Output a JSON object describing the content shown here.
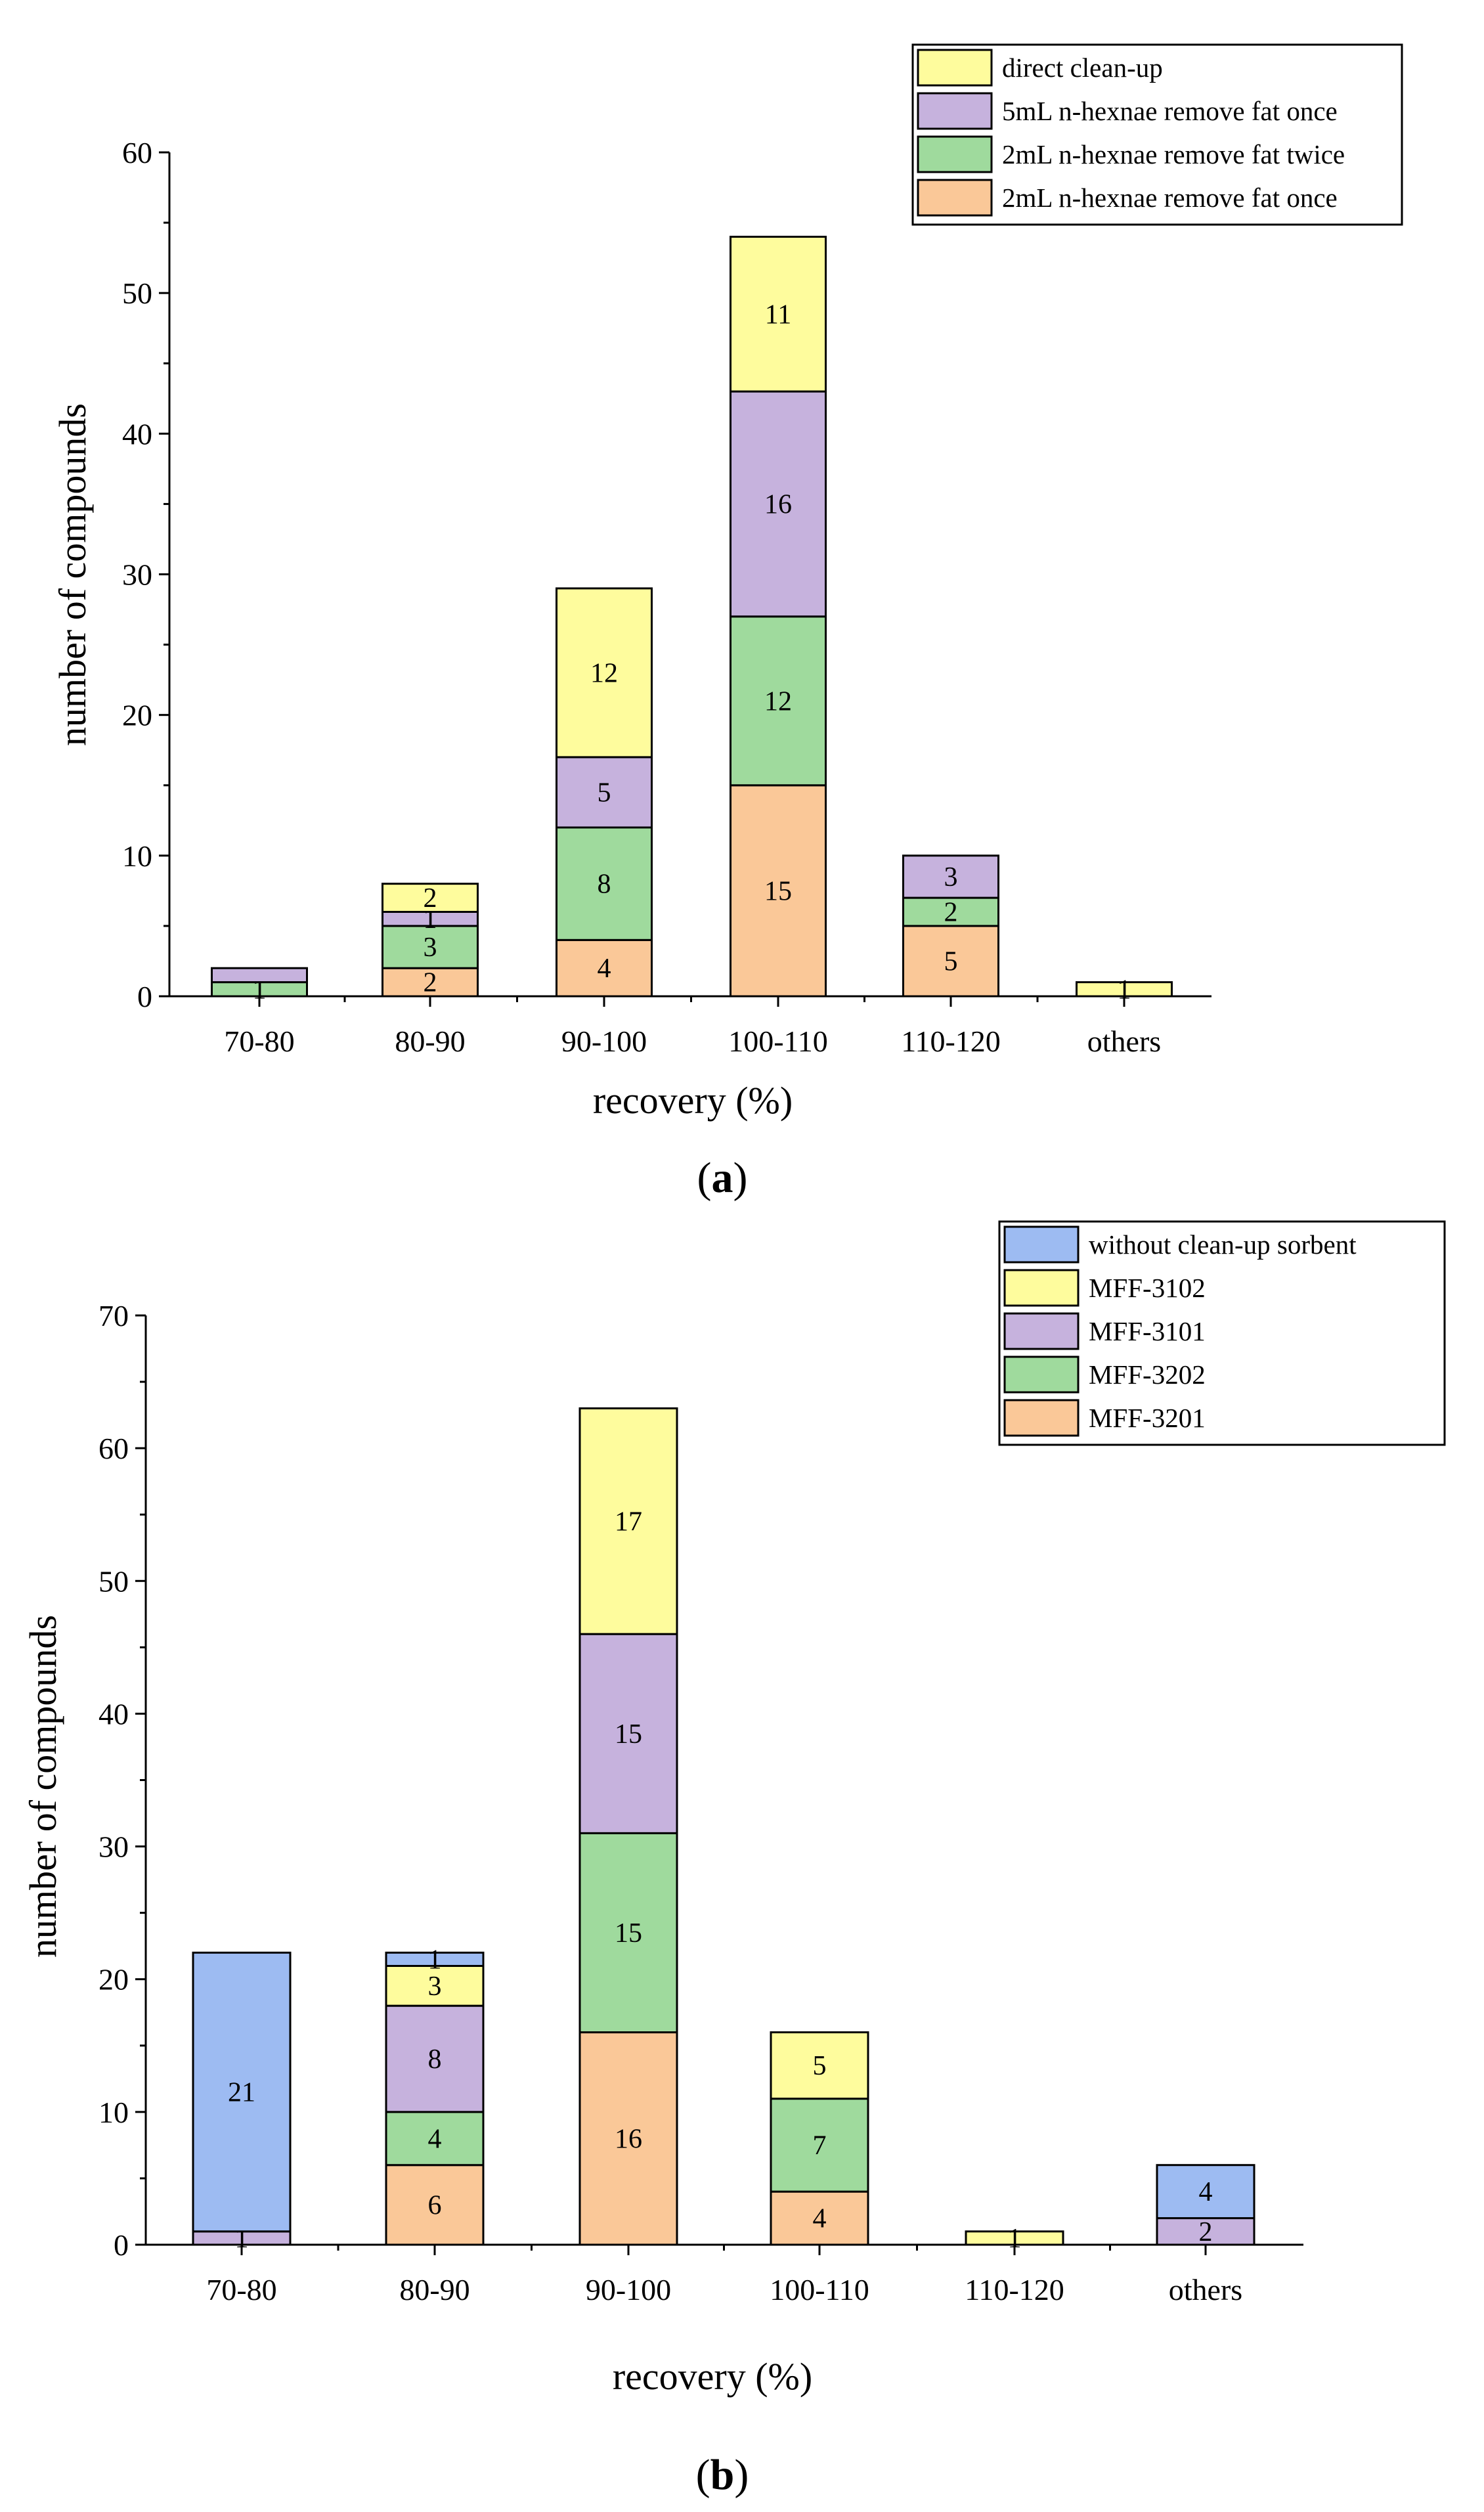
{
  "chart_data": [
    {
      "type": "bar",
      "stacked": true,
      "panel": "(a)",
      "panel_letter": "a",
      "xlabel": "recovery (%)",
      "ylabel": "number of compounds",
      "ylim": [
        0,
        60
      ],
      "yticks": [
        0,
        10,
        20,
        30,
        40,
        50,
        60
      ],
      "legend_position": "top-right",
      "categories": [
        "70-80",
        "80-90",
        "90-100",
        "100-110",
        "110-120",
        "others"
      ],
      "series": [
        {
          "name": "2mL n-hexnae remove fat once",
          "color": "#FAC898",
          "values": [
            0,
            2,
            4,
            15,
            5,
            0
          ],
          "labels": [
            "",
            "2",
            "4",
            "15",
            "5",
            ""
          ]
        },
        {
          "name": "2mL n-hexnae remove fat twice",
          "color": "#9FDA9D",
          "values": [
            1,
            3,
            8,
            12,
            2,
            0
          ],
          "labels": [
            "1",
            "3",
            "8",
            "12",
            "2",
            ""
          ]
        },
        {
          "name": "5mL n-hexnae remove fat once",
          "color": "#C6B2DD",
          "values": [
            1,
            1,
            5,
            16,
            3,
            0
          ],
          "labels": [
            "",
            "1",
            "5",
            "16",
            "3",
            ""
          ]
        },
        {
          "name": "direct clean-up",
          "color": "#FEFC9D",
          "values": [
            0,
            2,
            12,
            11,
            0,
            1
          ],
          "labels": [
            "",
            "2",
            "12",
            "11",
            "",
            "1"
          ]
        }
      ]
    },
    {
      "type": "bar",
      "stacked": true,
      "panel": "(b)",
      "panel_letter": "b",
      "xlabel": "recovery (%)",
      "ylabel": "number of compounds",
      "ylim": [
        0,
        70
      ],
      "yticks": [
        0,
        10,
        20,
        30,
        40,
        50,
        60,
        70
      ],
      "legend_position": "top-right",
      "categories": [
        "70-80",
        "80-90",
        "90-100",
        "100-110",
        "110-120",
        "others"
      ],
      "series": [
        {
          "name": "MFF-3201",
          "color": "#FAC898",
          "values": [
            0,
            6,
            16,
            4,
            0,
            0
          ],
          "labels": [
            "",
            "6",
            "16",
            "4",
            "",
            ""
          ]
        },
        {
          "name": "MFF-3202",
          "color": "#9FDA9D",
          "values": [
            0,
            4,
            15,
            7,
            0,
            0
          ],
          "labels": [
            "",
            "4",
            "15",
            "7",
            "",
            ""
          ]
        },
        {
          "name": "MFF-3101",
          "color": "#C6B2DD",
          "values": [
            1,
            8,
            15,
            0,
            0,
            2
          ],
          "labels": [
            "1",
            "8",
            "15",
            "",
            "",
            "2"
          ]
        },
        {
          "name": "MFF-3102",
          "color": "#FEFC9D",
          "values": [
            0,
            3,
            17,
            5,
            1,
            0
          ],
          "labels": [
            "",
            "3",
            "17",
            "5",
            "1",
            ""
          ]
        },
        {
          "name": "without clean-up sorbent",
          "color": "#9DBBF2",
          "values": [
            21,
            1,
            0,
            0,
            0,
            4
          ],
          "labels": [
            "21",
            "1",
            "",
            "",
            "",
            "4"
          ]
        }
      ]
    }
  ]
}
